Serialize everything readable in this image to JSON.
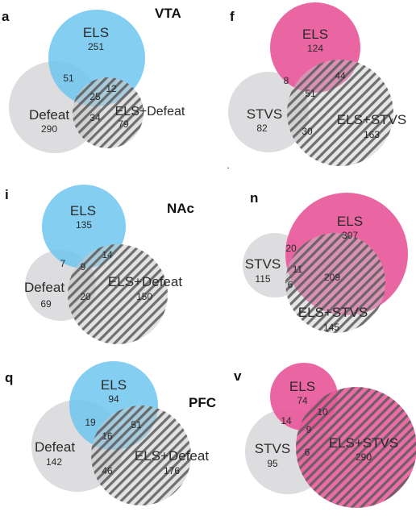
{
  "colors": {
    "els_blue": "#6ec6ee",
    "els_pink": "#e8599a",
    "grey": "#d9d9db",
    "stripe": "#5a5a5a"
  },
  "regions": {
    "vta": "VTA",
    "nac": "NAc",
    "pfc": "PFC"
  },
  "panels": {
    "a": {
      "letter": "a",
      "sets": [
        "ELS",
        "Defeat",
        "ELS+Defeat"
      ],
      "counts": {
        "els": "251",
        "defeat": "290",
        "combo": "79",
        "els_defeat": "51",
        "els_combo": "12",
        "defeat_combo": "34",
        "all": "25"
      }
    },
    "f": {
      "letter": "f",
      "sets": [
        "ELS",
        "STVS",
        "ELS+STVS"
      ],
      "counts": {
        "els": "124",
        "stvs": "82",
        "combo": "163",
        "els_stvs": "8",
        "els_combo": "44",
        "stvs_combo": "30",
        "all": "51"
      }
    },
    "i": {
      "letter": "i",
      "sets": [
        "ELS",
        "Defeat",
        "ELS+Defeat"
      ],
      "counts": {
        "els": "135",
        "defeat": "69",
        "combo": "150",
        "els_defeat": "7",
        "els_combo": "14",
        "defeat_combo": "20",
        "all": "9"
      }
    },
    "n": {
      "letter": "n",
      "sets": [
        "ELS",
        "STVS",
        "ELS+STVS"
      ],
      "counts": {
        "els": "307",
        "stvs": "115",
        "combo": "145",
        "els_stvs": "20",
        "els_combo": "209",
        "stvs_combo": "6",
        "all": "11"
      }
    },
    "q": {
      "letter": "q",
      "sets": [
        "ELS",
        "Defeat",
        "ELS+Defeat"
      ],
      "counts": {
        "els": "94",
        "defeat": "142",
        "combo": "176",
        "els_defeat": "19",
        "els_combo": "51",
        "defeat_combo": "46",
        "all": "16"
      }
    },
    "v": {
      "letter": "v",
      "sets": [
        "ELS",
        "STVS",
        "ELS+STVS"
      ],
      "counts": {
        "els": "74",
        "stvs": "95",
        "combo": "290",
        "els_stvs": "14",
        "els_combo": "10",
        "stvs_combo": "6",
        "all": "9"
      }
    }
  }
}
